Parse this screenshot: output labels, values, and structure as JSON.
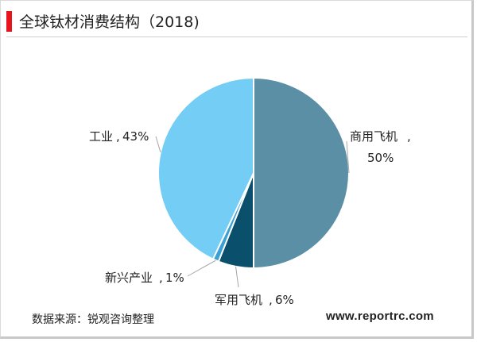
{
  "title": "全球钛材消费结构（2018)",
  "source": "数据来源：锐观咨询整理",
  "website": "www.reportrc.com",
  "colors": {
    "accent": "#e8141b"
  },
  "chart_data": {
    "type": "pie",
    "slices": [
      {
        "label": "商用飞机",
        "value": 50,
        "value_label": "50%",
        "color": "#5b8fa6"
      },
      {
        "label": "军用飞机",
        "value": 6,
        "value_label": "6%",
        "color": "#0a4f6b"
      },
      {
        "label": "新兴产业",
        "value": 1,
        "value_label": "1%",
        "color": "#3aa0d6"
      },
      {
        "label": "工业",
        "value": 43,
        "value_label": "43%",
        "color": "#73cdf4"
      }
    ]
  }
}
